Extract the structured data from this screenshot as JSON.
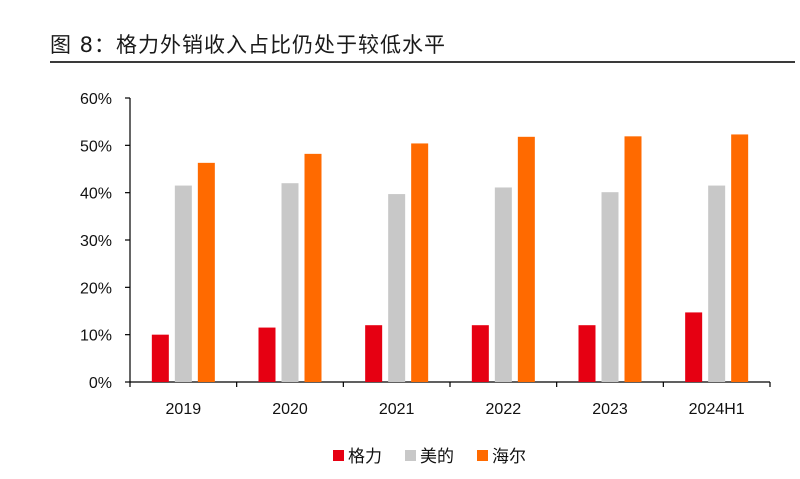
{
  "title": "图 8：格力外销收入占比仍处于较低水平",
  "chart_data": {
    "type": "bar",
    "categories": [
      "2019",
      "2020",
      "2021",
      "2022",
      "2023",
      "2024H1"
    ],
    "series": [
      {
        "name": "格力",
        "color": "#e60012",
        "values": [
          10,
          11.5,
          12,
          12,
          12,
          14.7
        ]
      },
      {
        "name": "美的",
        "color": "#c8c8c8",
        "values": [
          41.5,
          42,
          39.7,
          41.1,
          40.1,
          41.5
        ]
      },
      {
        "name": "海尔",
        "color": "#ff6a00",
        "values": [
          46.3,
          48.2,
          50.4,
          51.8,
          51.9,
          52.3
        ]
      }
    ],
    "ylim": [
      0,
      60
    ],
    "yticks": [
      0,
      10,
      20,
      30,
      40,
      50,
      60
    ],
    "ytick_labels": [
      "0%",
      "10%",
      "20%",
      "30%",
      "40%",
      "50%",
      "60%"
    ],
    "legend_position": "bottom-center",
    "grid": false
  }
}
